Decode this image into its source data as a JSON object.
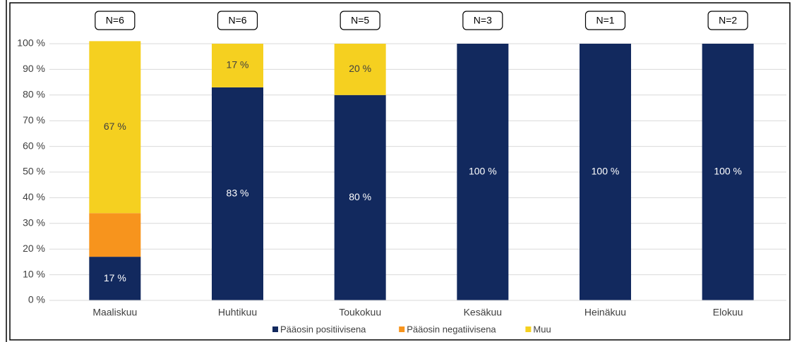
{
  "chart_data": {
    "type": "stacked_bar",
    "categories": [
      "Maaliskuu",
      "Huhtikuu",
      "Toukokuu",
      "Kesäkuu",
      "Heinäkuu",
      "Elokuu"
    ],
    "annotations": [
      "N=6",
      "N=6",
      "N=5",
      "N=3",
      "N=1",
      "N=2"
    ],
    "series": [
      {
        "name": "Pääosin positiivisena",
        "color": "#12295e",
        "values": [
          17,
          83,
          80,
          100,
          100,
          100
        ],
        "value_labels": [
          "17 %",
          "83 %",
          "80 %",
          "100 %",
          "100 %",
          "100 %"
        ]
      },
      {
        "name": "Pääosin negatiivisena",
        "color": "#f7941d",
        "values": [
          17,
          0,
          0,
          0,
          0,
          0
        ],
        "value_labels": [
          null,
          null,
          null,
          null,
          null,
          null
        ]
      },
      {
        "name": "Muu",
        "color": "#f5d020",
        "values": [
          67,
          17,
          20,
          0,
          0,
          0
        ],
        "value_labels": [
          "67 %",
          "17 %",
          "20 %",
          null,
          null,
          null
        ]
      }
    ],
    "ylim": [
      0,
      100
    ],
    "yticks": [
      {
        "value": 0,
        "label": "0 %"
      },
      {
        "value": 10,
        "label": "10 %"
      },
      {
        "value": 20,
        "label": "20 %"
      },
      {
        "value": 30,
        "label": "30 %"
      },
      {
        "value": 40,
        "label": "40 %"
      },
      {
        "value": 50,
        "label": "50 %"
      },
      {
        "value": 60,
        "label": "60 %"
      },
      {
        "value": 70,
        "label": "70 %"
      },
      {
        "value": 80,
        "label": "80 %"
      },
      {
        "value": 90,
        "label": "90 %"
      },
      {
        "value": 100,
        "label": "100 %"
      }
    ],
    "grid": true,
    "legend": "bottom"
  }
}
